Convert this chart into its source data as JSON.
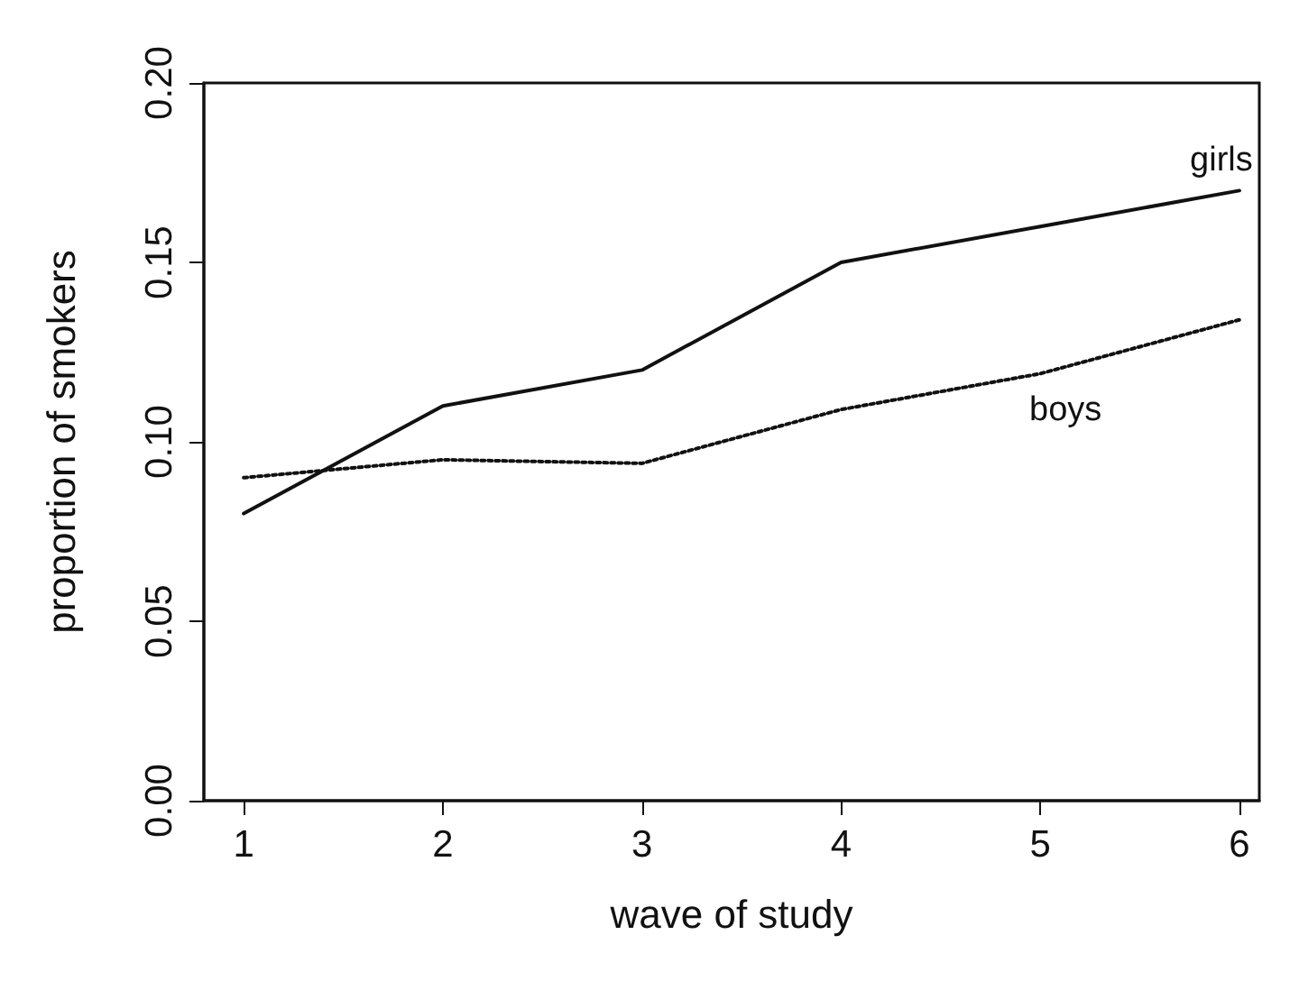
{
  "chart_data": {
    "type": "line",
    "xlabel": "wave of study",
    "ylabel": "proportion of smokers",
    "x": [
      1,
      2,
      3,
      4,
      5,
      6
    ],
    "xlim": [
      0.8,
      6.1
    ],
    "xticks": [
      1,
      2,
      3,
      4,
      5,
      6
    ],
    "ylim": [
      0,
      0.2
    ],
    "yticks": [
      {
        "value": 0,
        "label": "0.00"
      },
      {
        "value": 0.05,
        "label": "0.05"
      },
      {
        "value": 0.1,
        "label": "0.10"
      },
      {
        "value": 0.15,
        "label": "0.15"
      },
      {
        "value": 0.2,
        "label": "0.20"
      }
    ],
    "grid": false,
    "legend": false,
    "marker": "none",
    "series": [
      {
        "name": "girls",
        "color": "#111111",
        "line_style": "solid",
        "values": [
          0.08,
          0.11,
          0.12,
          0.15,
          0.16,
          0.17
        ]
      },
      {
        "name": "boys",
        "color": "#111111",
        "line_style": "dotted",
        "values": [
          0.09,
          0.095,
          0.094,
          0.109,
          0.119,
          0.134
        ]
      }
    ]
  }
}
